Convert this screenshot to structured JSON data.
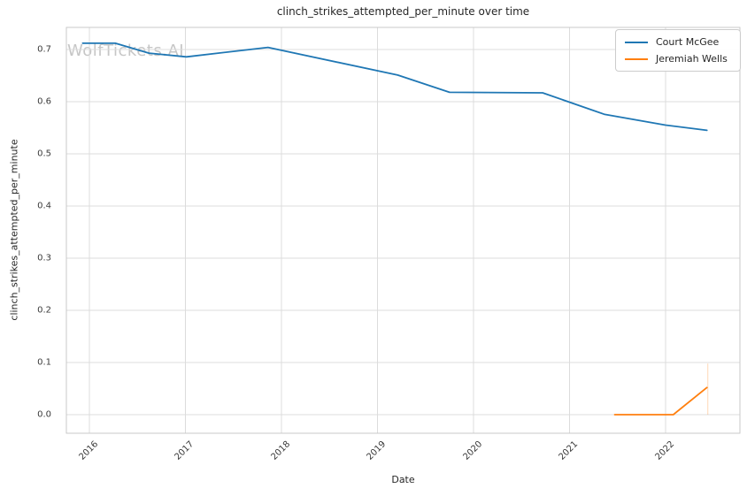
{
  "watermark": "WolfTickets.AI",
  "chart_data": {
    "type": "line",
    "title": "clinch_strikes_attempted_per_minute over time",
    "xlabel": "Date",
    "ylabel": "clinch_strikes_attempted_per_minute",
    "x_unit": "decimal_year",
    "xlim": [
      2015.76,
      2022.77
    ],
    "ylim": [
      0.0,
      0.742
    ],
    "xticks": [
      2016,
      2017,
      2018,
      2019,
      2020,
      2021,
      2022
    ],
    "xtick_labels": [
      "2016",
      "2017",
      "2018",
      "2019",
      "2020",
      "2021",
      "2022"
    ],
    "yticks": [
      0.0,
      0.1,
      0.2,
      0.3,
      0.4,
      0.5,
      0.6,
      0.7
    ],
    "ytick_labels": [
      "0.0",
      "0.1",
      "0.2",
      "0.3",
      "0.4",
      "0.5",
      "0.6",
      "0.7"
    ],
    "grid": true,
    "grid_color": "#dcdcdc",
    "spine_color": "#c9c9c9",
    "legend_position": "upper right",
    "series": [
      {
        "name": "Court McGee",
        "color": "#1f77b4",
        "points": [
          [
            2015.93,
            0.712
          ],
          [
            2016.27,
            0.712
          ],
          [
            2016.62,
            0.693
          ],
          [
            2017.01,
            0.686
          ],
          [
            2017.86,
            0.704
          ],
          [
            2019.21,
            0.651
          ],
          [
            2019.75,
            0.618
          ],
          [
            2020.72,
            0.617
          ],
          [
            2021.36,
            0.576
          ],
          [
            2022.0,
            0.555
          ],
          [
            2022.43,
            0.545
          ]
        ]
      },
      {
        "name": "Jeremiah Wells",
        "color": "#ff7f0e",
        "points": [
          [
            2021.47,
            0.0
          ],
          [
            2022.08,
            0.0
          ],
          [
            2022.43,
            0.052
          ]
        ]
      }
    ],
    "annotations": [
      {
        "type": "vline",
        "x": 2022.44,
        "y0": 0.0,
        "y1": 0.098,
        "color": "#ff7f0e",
        "opacity": 0.3
      }
    ]
  }
}
